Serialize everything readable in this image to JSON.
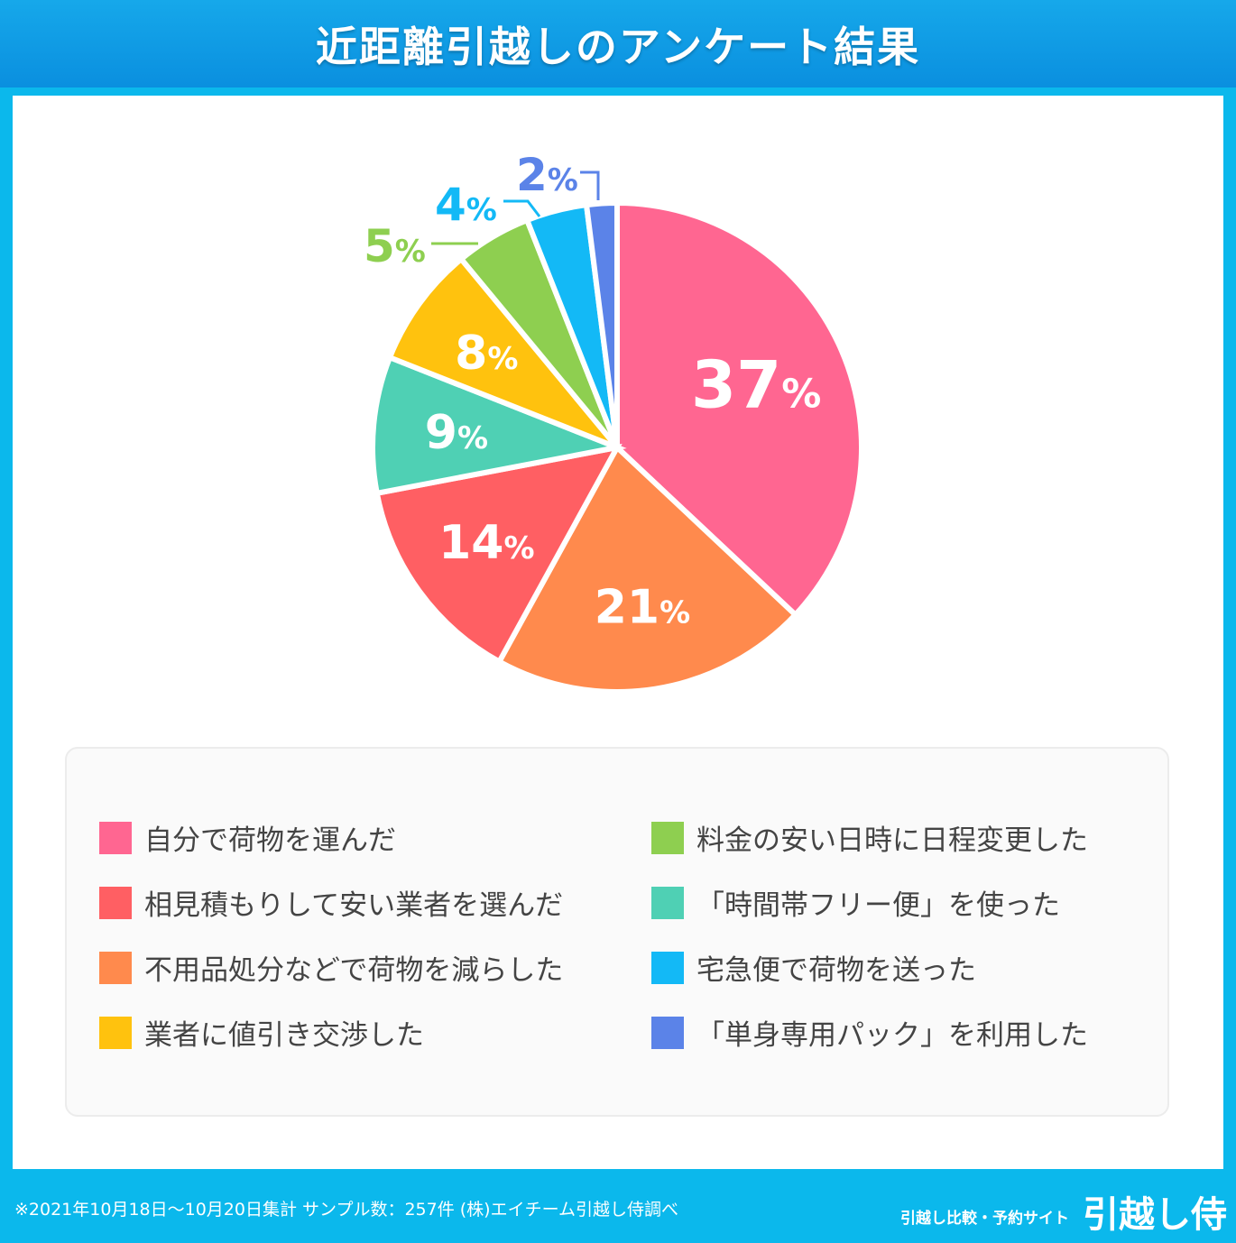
{
  "title": "近距離引越しのアンケート結果",
  "chart_data": {
    "type": "pie",
    "start_angle": "top",
    "direction": "clockwise",
    "categories": [
      "自分で荷物を運んだ",
      "不用品処分などで荷物を減らした",
      "相見積もりして安い業者を選んだ",
      "「時間帯フリー便」を使った",
      "業者に値引き交渉した",
      "料金の安い日時に日程変更した",
      "宅急便で荷物を送った",
      "「単身専用パック」を利用した"
    ],
    "values": [
      37,
      21,
      14,
      9,
      8,
      5,
      4,
      2
    ],
    "labels": [
      "37",
      "21",
      "14",
      "9",
      "8",
      "5",
      "4",
      "2"
    ],
    "unit": "%",
    "colors": [
      "#ff6691",
      "#ff8a4d",
      "#ff5f63",
      "#4fd0b4",
      "#ffc20e",
      "#8ecf50",
      "#13b9f6",
      "#5b83e8"
    ]
  },
  "legend": [
    {
      "label": "自分で荷物を運んだ",
      "color": "#ff6691"
    },
    {
      "label": "相見積もりして安い業者を選んだ",
      "color": "#ff5f63"
    },
    {
      "label": "不用品処分などで荷物を減らした",
      "color": "#ff8a4d"
    },
    {
      "label": "業者に値引き交渉した",
      "color": "#ffc20e"
    },
    {
      "label": "料金の安い日時に日程変更した",
      "color": "#8ecf50"
    },
    {
      "label": "「時間帯フリー便」を使った",
      "color": "#4fd0b4"
    },
    {
      "label": "宅急便で荷物を送った",
      "color": "#13b9f6"
    },
    {
      "label": "「単身専用パック」を利用した",
      "color": "#5b83e8"
    }
  ],
  "footer": {
    "note": "※2021年10月18日〜10月20日集計 サンプル数：257件 (株)エイチーム引越し侍調べ",
    "brand_sub": "引越し比較・予約サイト",
    "brand": "引越し侍"
  }
}
